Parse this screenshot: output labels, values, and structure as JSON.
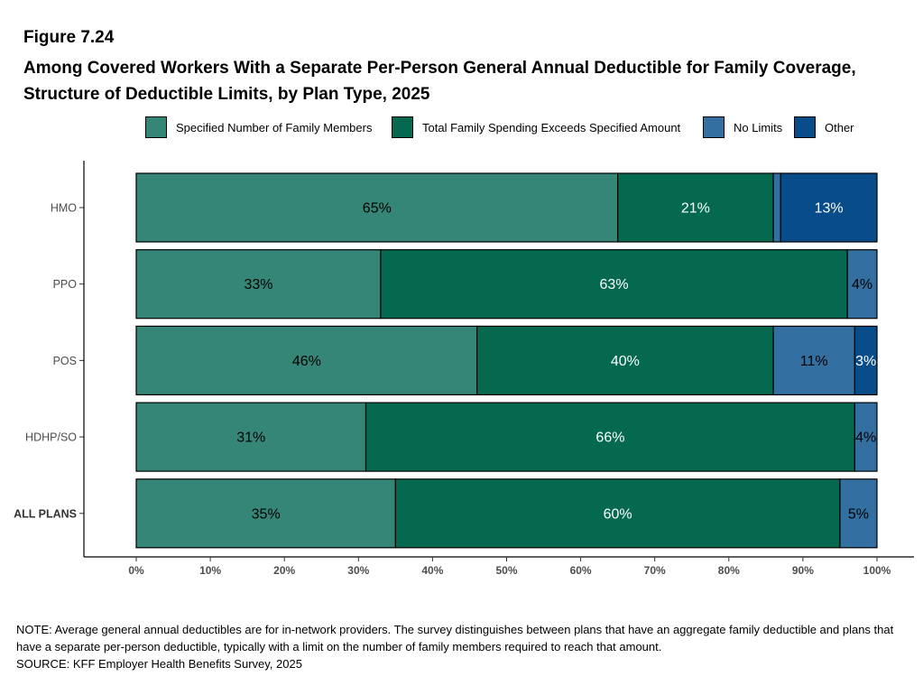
{
  "figure_label": "Figure 7.24",
  "title": "Among Covered Workers With a Separate Per-Person General Annual Deductible for Family Coverage, Structure of Deductible Limits, by Plan Type, 2025",
  "note": "NOTE: Average general annual deductibles are for in-network providers. The survey distinguishes between plans that have an aggregate family deductible and plans that have a separate per-person deductible, typically with a limit on the number of family members required to reach that amount.",
  "source": "SOURCE: KFF Employer Health Benefits Survey, 2025",
  "chart_data": {
    "type": "bar",
    "orientation": "horizontal",
    "stacked": true,
    "categories": [
      "HMO",
      "PPO",
      "POS",
      "HDHP/SO",
      "ALL PLANS"
    ],
    "bold_categories": [
      "ALL PLANS"
    ],
    "series": [
      {
        "name": "Specified Number of Family Members",
        "color": "#358677",
        "values": [
          65,
          33,
          46,
          31,
          35
        ],
        "labels": [
          "65%",
          "33%",
          "46%",
          "31%",
          "35%"
        ],
        "label_color": "#000000"
      },
      {
        "name": "Total Family Spending Exceeds Specified Amount",
        "color": "#04694f",
        "values": [
          21,
          63,
          40,
          66,
          60
        ],
        "labels": [
          "21%",
          "63%",
          "40%",
          "66%",
          "60%"
        ],
        "label_color": "#ffffff"
      },
      {
        "name": "No Limits",
        "color": "#336fa1",
        "values": [
          1,
          4,
          11,
          4,
          5
        ],
        "labels": [
          "",
          "4%",
          "11%",
          "4%",
          "5%"
        ],
        "label_color": "#000000"
      },
      {
        "name": "Other",
        "color": "#084c8a",
        "values": [
          13,
          0,
          3,
          0,
          0
        ],
        "labels": [
          "13%",
          "",
          "3%",
          "",
          ""
        ],
        "label_color": "#ffffff"
      }
    ],
    "xlim": [
      0,
      100
    ],
    "x_ticks": [
      "0%",
      "10%",
      "20%",
      "30%",
      "40%",
      "50%",
      "60%",
      "70%",
      "80%",
      "90%",
      "100%"
    ],
    "legend_position": "top",
    "grid": false
  }
}
